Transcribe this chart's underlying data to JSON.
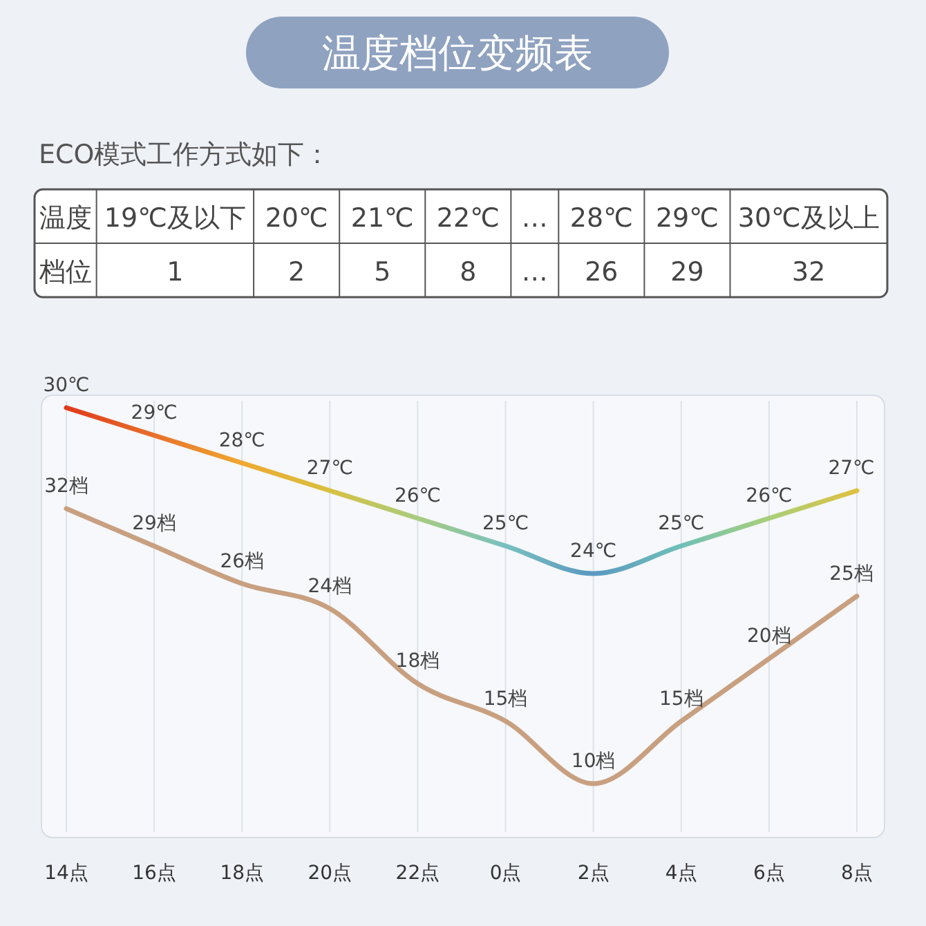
{
  "chart_data": [
    {
      "type": "other",
      "title": "温度档位变频表",
      "subtitle": "ECO模式工作方式如下：",
      "annotations": [
        "温度",
        "19℃及以下",
        "20℃",
        "21℃",
        "22℃",
        "…",
        "28℃",
        "29℃",
        "30℃及以上",
        "档位",
        "1",
        "2",
        "5",
        "8",
        "…",
        "26",
        "29",
        "32"
      ]
    },
    {
      "type": "line",
      "categories": [
        "14点",
        "16点",
        "18点",
        "20点",
        "22点",
        "0点",
        "2点",
        "4点",
        "6点",
        "8点"
      ],
      "tick_labels": "x",
      "grid": "x",
      "marker": "none",
      "line_style": "solid",
      "series": [
        {
          "color": "#e8a030",
          "colors": [
            "#e03a1c",
            "#e8702a",
            "#f0a830",
            "#d8c040",
            "#a8cc80",
            "#78c0c0",
            "#5a98c0",
            "#70c0b8",
            "#a8d078",
            "#e0c040"
          ],
          "values": [
            30,
            29,
            28,
            27,
            26,
            25,
            24,
            25,
            26,
            27
          ],
          "value_labels": [
            "30℃",
            "29℃",
            "28℃",
            "27℃",
            "26℃",
            "25℃",
            "24℃",
            "25℃",
            "26℃",
            "27℃"
          ]
        },
        {
          "axis": "y2",
          "color": "#c8a080",
          "values": [
            32,
            29,
            26,
            24,
            18,
            15,
            10,
            15,
            20,
            25
          ],
          "value_labels": [
            "32档",
            "29档",
            "26档",
            "24档",
            "18档",
            "15档",
            "10档",
            "15档",
            "20档",
            "25档"
          ]
        }
      ]
    }
  ]
}
